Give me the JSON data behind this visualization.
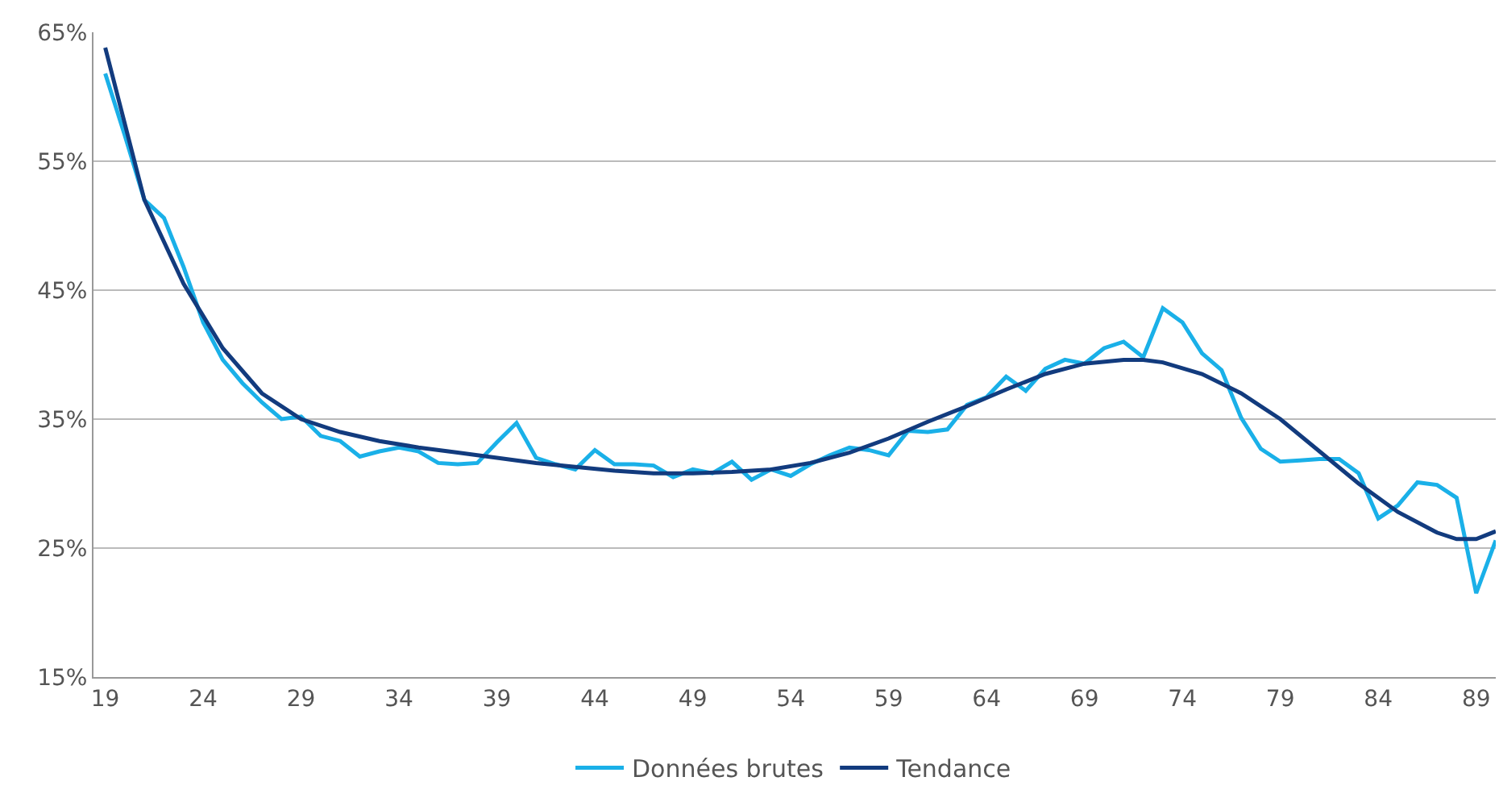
{
  "chart_data": {
    "type": "line",
    "legend": "bottom",
    "grid": "y",
    "marker": "none",
    "line_style": "solid",
    "xlim": [
      18.4,
      90
    ],
    "xticks": [
      19,
      24,
      29,
      34,
      39,
      44,
      49,
      54,
      59,
      64,
      69,
      74,
      79,
      84,
      89
    ],
    "ylim": [
      15,
      65
    ],
    "yticks": [
      {
        "value": 15,
        "label": "15%"
      },
      {
        "value": 25,
        "label": "25%"
      },
      {
        "value": 35,
        "label": "35%"
      },
      {
        "value": 45,
        "label": "45%"
      },
      {
        "value": 55,
        "label": "55%"
      },
      {
        "value": 65,
        "label": "65%"
      }
    ],
    "series": [
      {
        "name": "Données brutes",
        "color": "#1ab0e8",
        "x": [
          19,
          20,
          21,
          22,
          23,
          24,
          25,
          26,
          27,
          28,
          29,
          30,
          31,
          32,
          33,
          34,
          35,
          36,
          37,
          38,
          39,
          40,
          41,
          42,
          43,
          44,
          45,
          46,
          47,
          48,
          49,
          50,
          51,
          52,
          53,
          54,
          55,
          56,
          57,
          58,
          59,
          60,
          61,
          62,
          63,
          64,
          65,
          66,
          67,
          68,
          69,
          70,
          71,
          72,
          73,
          74,
          75,
          76,
          77,
          78,
          79,
          80,
          81,
          82,
          83,
          84,
          85,
          86,
          87,
          88,
          89,
          90
        ],
        "values": [
          61.8,
          57,
          52.0,
          50.6,
          46.8,
          42.5,
          39.6,
          37.8,
          36.3,
          35.0,
          35.2,
          33.7,
          33.3,
          32.1,
          32.5,
          32.8,
          32.5,
          31.6,
          31.5,
          31.6,
          33.2,
          34.7,
          32.0,
          31.5,
          31.1,
          32.6,
          31.5,
          31.5,
          31.4,
          30.5,
          31.1,
          30.8,
          31.7,
          30.3,
          31.1,
          30.6,
          31.5,
          32.2,
          32.8,
          32.6,
          32.2,
          34.1,
          34.0,
          34.2,
          36.1,
          36.7,
          38.3,
          37.2,
          38.9,
          39.6,
          39.3,
          40.5,
          41.0,
          39.8,
          43.6,
          42.5,
          40.1,
          38.8,
          35.1,
          32.7,
          31.7,
          31.8,
          31.9,
          31.9,
          30.8,
          27.3,
          28.3,
          30.1,
          29.9,
          28.9,
          21.5,
          25.6
        ]
      },
      {
        "name": "Tendance",
        "color": "#123b7e",
        "x": [
          19,
          21,
          23,
          25,
          27,
          29,
          31,
          33,
          35,
          37,
          39,
          41,
          43,
          45,
          47,
          49,
          51,
          53,
          55,
          57,
          59,
          61,
          63,
          65,
          67,
          69,
          71,
          72,
          73,
          75,
          77,
          79,
          81,
          83,
          85,
          87,
          88,
          89,
          90
        ],
        "values": [
          63.8,
          52,
          45.5,
          40.5,
          37,
          35.0,
          34.0,
          33.3,
          32.8,
          32.4,
          32.0,
          31.6,
          31.3,
          31.0,
          30.8,
          30.8,
          30.9,
          31.1,
          31.6,
          32.4,
          33.5,
          34.8,
          36.0,
          37.3,
          38.5,
          39.3,
          39.6,
          39.6,
          39.4,
          38.5,
          37.0,
          35.0,
          32.5,
          30.0,
          27.8,
          26.2,
          25.7,
          25.7,
          26.3
        ]
      }
    ]
  }
}
